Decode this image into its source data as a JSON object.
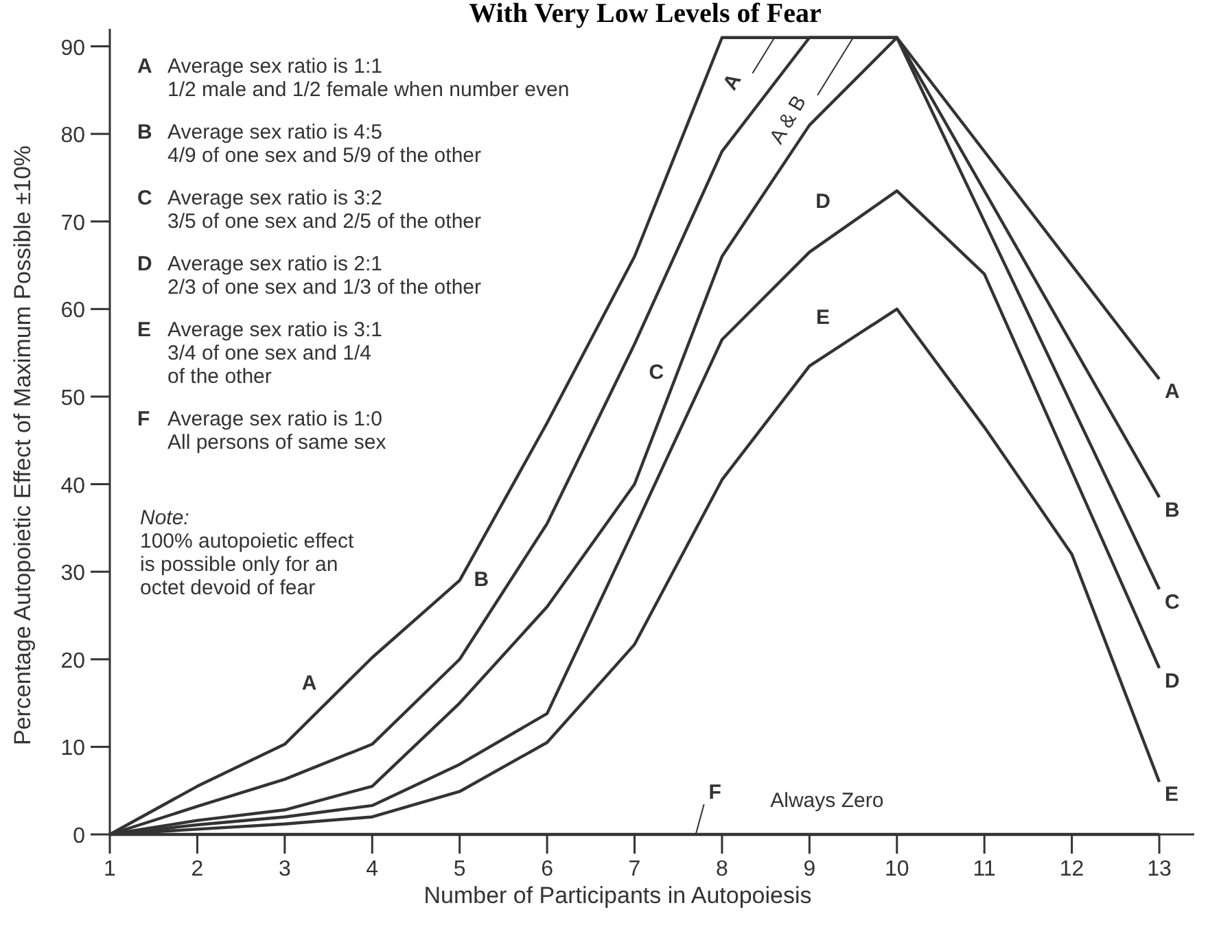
{
  "chart_data": {
    "type": "line",
    "title": "With Very Low Levels of Fear",
    "xlabel": "Number of Participants in Autopoiesis",
    "ylabel": "Percentage Autopoietic Effect of Maximum Possible ±10%",
    "xlim": [
      1,
      13.4
    ],
    "ylim": [
      0,
      92
    ],
    "xticks": [
      1,
      2,
      3,
      4,
      5,
      6,
      7,
      8,
      9,
      10,
      11,
      12,
      13
    ],
    "yticks": [
      0,
      10,
      20,
      30,
      40,
      50,
      60,
      70,
      80,
      90
    ],
    "grid": false,
    "marker": "none",
    "line_style": "solid",
    "series": [
      {
        "name": "A",
        "color": "#333333",
        "x": [
          1,
          2,
          3,
          4,
          5,
          6,
          7,
          8,
          9,
          10,
          13
        ],
        "values": [
          0,
          5.5,
          10.3,
          20.2,
          29,
          47,
          66,
          91,
          91,
          91,
          52
        ]
      },
      {
        "name": "B",
        "color": "#333333",
        "x": [
          1,
          2,
          3,
          4,
          5,
          6,
          7,
          8,
          9,
          10,
          13
        ],
        "values": [
          0,
          3.2,
          6.3,
          10.3,
          20,
          35.5,
          56,
          78,
          91,
          91,
          38.5
        ]
      },
      {
        "name": "C",
        "color": "#333333",
        "x": [
          1,
          2,
          3,
          4,
          5,
          6,
          7,
          8,
          9,
          10,
          13
        ],
        "values": [
          0,
          1.6,
          2.8,
          5.5,
          15,
          26,
          40,
          66,
          81,
          91,
          28
        ]
      },
      {
        "name": "D",
        "color": "#333333",
        "x": [
          1,
          2,
          3,
          4,
          5,
          6,
          7,
          8,
          9,
          10,
          11,
          13
        ],
        "values": [
          0,
          1.1,
          2,
          3.3,
          8,
          13.8,
          35,
          56.5,
          66.5,
          73.5,
          64,
          19
        ]
      },
      {
        "name": "E",
        "color": "#333333",
        "x": [
          1,
          2,
          3,
          4,
          5,
          6,
          7,
          8,
          9,
          10,
          11,
          12,
          13
        ],
        "values": [
          0,
          0.6,
          1.2,
          2,
          4.9,
          10.5,
          21.7,
          40.5,
          53.5,
          60,
          46.5,
          32,
          6
        ]
      },
      {
        "color": "#333333",
        "x": [
          1,
          13
        ],
        "values": [
          0,
          0
        ]
      }
    ],
    "annotations": [
      "A Average sex ratio is 1:1\n1/2 male and 1/2 female when number even",
      "B Average sex ratio is 4:5\n4/9 of one sex and 5/9 of the other",
      "C Average sex ratio is 3:2\n3/5 of one sex and 2/5 of the other",
      "D Average sex ratio is 2:1\n2/3 of one sex and 1/3 of the other",
      "E Average sex ratio is 3:1\n3/4 of one sex and 1/4\nof the other",
      "F Average sex ratio is 1:0\nAll persons of same sex",
      "Note:\n100% autopoietic effect\nis possible only for an\noctet devoid of fear",
      {
        "text": "A",
        "x": 3.5,
        "y": 15.25
      },
      {
        "text": "B",
        "x": 5.5,
        "y": 27.75
      },
      {
        "text": "C",
        "x": 7.5,
        "y": 53
      },
      {
        "text": "D",
        "x": 9.5,
        "y": 70
      },
      {
        "text": "E",
        "x": 9.5,
        "y": 56.75
      },
      {
        "text": "A",
        "x": 8.6,
        "y": 91
      },
      {
        "text": "A & B",
        "x": 9.5,
        "y": 91
      },
      {
        "text": "F",
        "x": 7.7,
        "y": 0
      },
      {
        "text": "Always Zero",
        "x": 9.2,
        "y": 0
      }
    ]
  }
}
